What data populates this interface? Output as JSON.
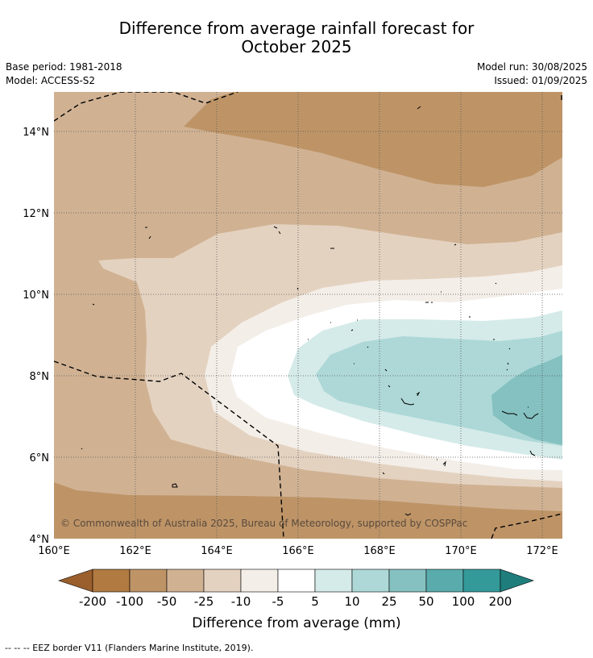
{
  "header": {
    "title_line1": "Difference from average rainfall forecast for",
    "title_line2": "October 2025",
    "base_period": "Base period: 1981-2018",
    "model": "Model: ACCESS-S2",
    "model_run": "Model run: 30/08/2025",
    "issued": "Issued: 01/09/2025"
  },
  "map": {
    "lat_labels": [
      "4°N",
      "6°N",
      "8°N",
      "10°N",
      "12°N",
      "14°N"
    ],
    "lon_labels": [
      "160°E",
      "162°E",
      "164°E",
      "166°E",
      "168°E",
      "170°E",
      "172°E"
    ],
    "copyright": "© Commonwealth of Australia 2025, Bureau of Meteorology, supported by COSPPac",
    "border_style": "dashed",
    "grid": "dotted"
  },
  "legend": {
    "ticks": [
      "-200",
      "-100",
      "-50",
      "-25",
      "-10",
      "-5",
      "5",
      "10",
      "25",
      "50",
      "100",
      "200"
    ],
    "colors": [
      "#9a5f2c",
      "#b07a41",
      "#be9467",
      "#d0b293",
      "#e4d2c0",
      "#f3eee8",
      "#ffffff",
      "#d5ebe9",
      "#add8d7",
      "#84c1c0",
      "#5aacac",
      "#349a99",
      "#1f7e7c"
    ],
    "label": "Difference from average (mm)"
  },
  "footnote": "--  --  -- EEZ border V11 (Flanders Marine Institute, 2019)."
}
